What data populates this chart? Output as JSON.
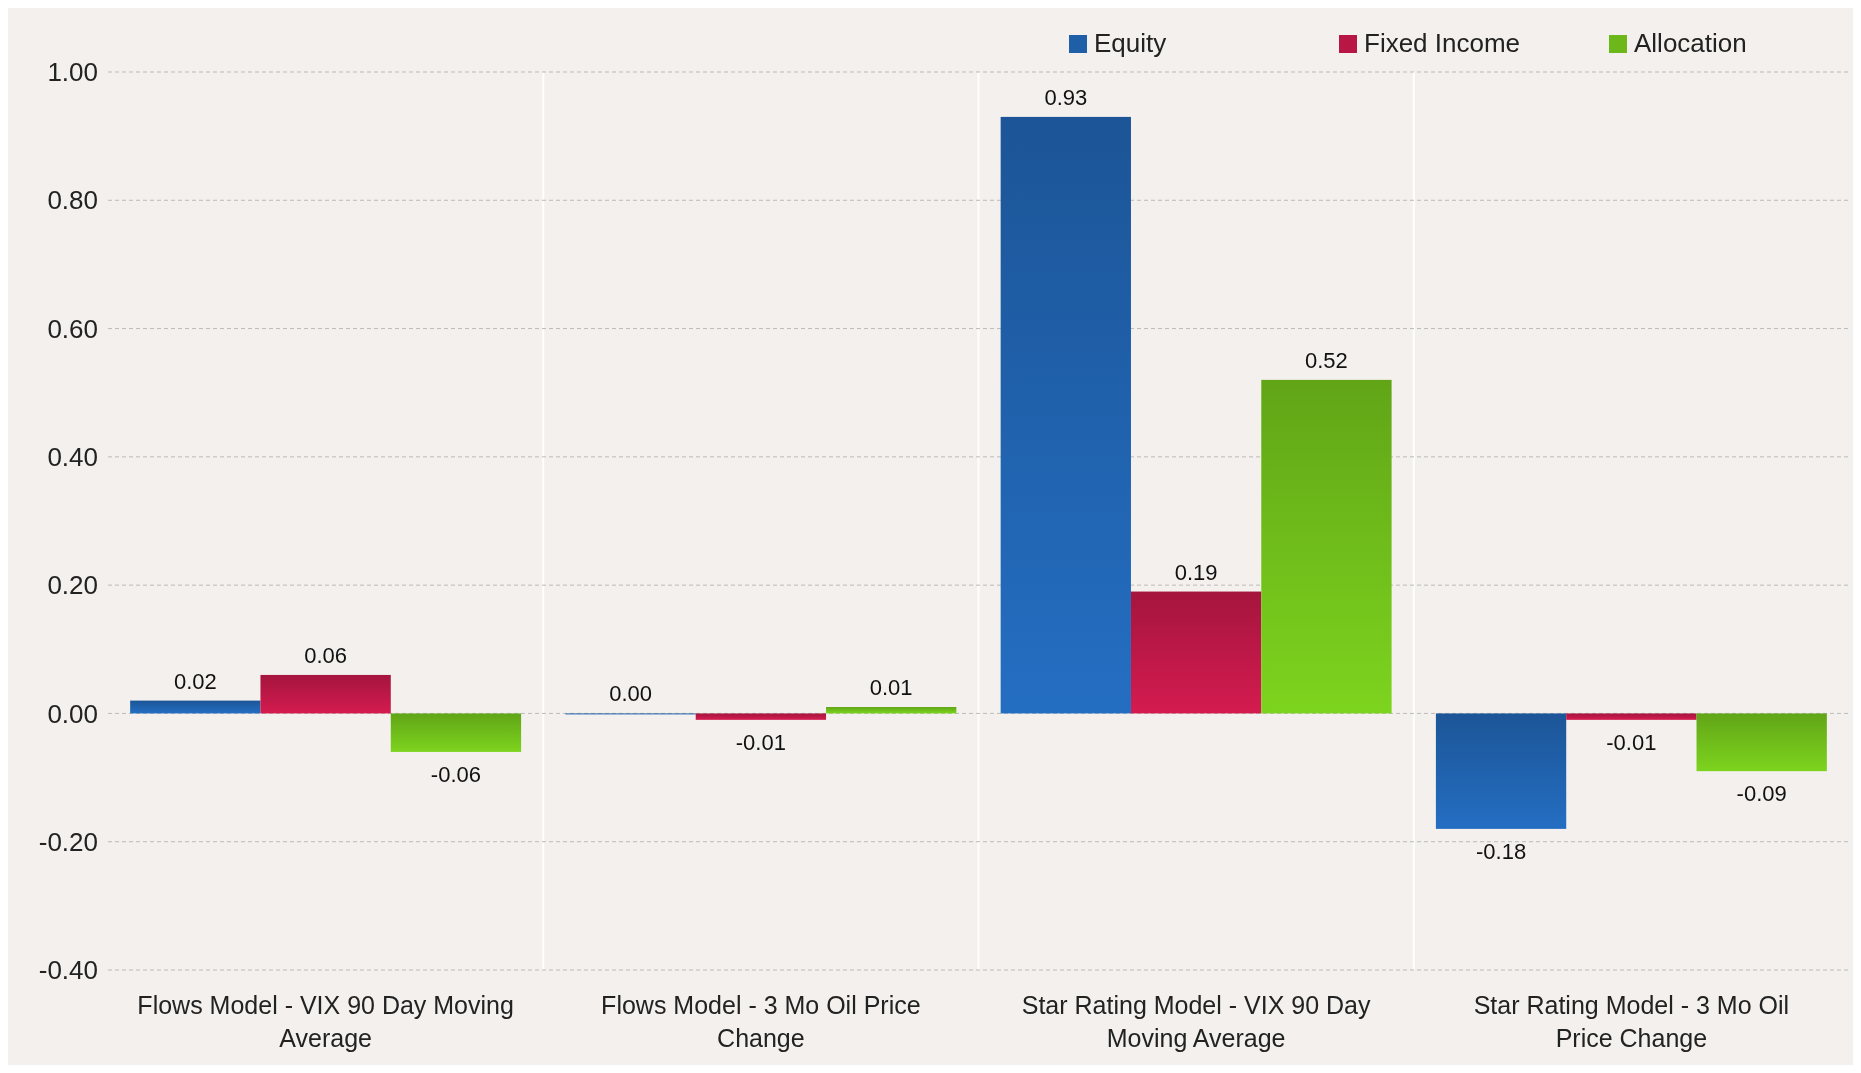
{
  "chart_data": {
    "type": "bar",
    "categories": [
      "Flows Model - VIX 90 Day Moving Average",
      "Flows Model - 3 Mo Oil Price Change",
      "Star Rating Model - VIX 90 Day Moving Average",
      "Star Rating Model - 3 Mo Oil Price Change"
    ],
    "series": [
      {
        "name": "Equity",
        "color": "#1f5fa8",
        "values": [
          0.02,
          0.0,
          0.93,
          -0.18
        ],
        "value_labels": [
          "0.02",
          "0.00",
          "0.93",
          "-0.18"
        ]
      },
      {
        "name": "Fixed Income",
        "color": "#b81745",
        "values": [
          0.06,
          -0.01,
          0.19,
          -0.01
        ],
        "value_labels": [
          "0.06",
          "-0.01",
          "0.19",
          "-0.01"
        ]
      },
      {
        "name": "Allocation",
        "color": "#6cb81a",
        "values": [
          -0.06,
          0.01,
          0.52,
          -0.09
        ],
        "value_labels": [
          "-0.06",
          "0.01",
          "0.52",
          "-0.09"
        ]
      }
    ],
    "ylim": [
      -0.4,
      1.0
    ],
    "yticks": [
      {
        "value": -0.4,
        "label": "-0.40"
      },
      {
        "value": -0.2,
        "label": "-0.20"
      },
      {
        "value": 0,
        "label": "0.00"
      },
      {
        "value": 0.2,
        "label": "0.20"
      },
      {
        "value": 0.4,
        "label": "0.40"
      },
      {
        "value": 0.6,
        "label": "0.60"
      },
      {
        "value": 0.8,
        "label": "0.80"
      },
      {
        "value": 1.0,
        "label": "1.00"
      }
    ],
    "grid": "y",
    "legend": "top right"
  }
}
